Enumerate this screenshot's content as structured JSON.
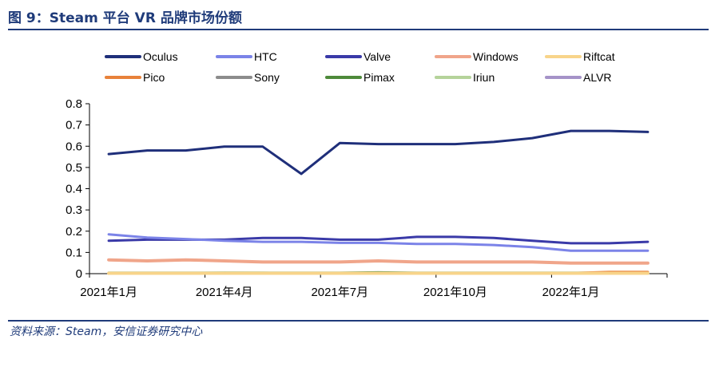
{
  "header": {
    "title": "图 9：Steam 平台 VR 品牌市场份额"
  },
  "footer": {
    "source": "资料来源：Steam，安信证券研究中心"
  },
  "chart_data": {
    "type": "line",
    "x": [
      "2021-01",
      "2021-02",
      "2021-03",
      "2021-04",
      "2021-05",
      "2021-06",
      "2021-07",
      "2021-08",
      "2021-09",
      "2021-10",
      "2021-11",
      "2021-12",
      "2022-01",
      "2022-02",
      "2022-03"
    ],
    "x_tick_labels": [
      "2021年1月",
      "2021年4月",
      "2021年7月",
      "2021年10月",
      "2022年1月"
    ],
    "x_tick_index": [
      0,
      3,
      6,
      9,
      12
    ],
    "ylim": [
      0,
      0.8
    ],
    "yticks": [
      0,
      0.1,
      0.2,
      0.3,
      0.4,
      0.5,
      0.6,
      0.7,
      0.8
    ],
    "ytick_labels": [
      "0",
      "0.1",
      "0.2",
      "0.3",
      "0.4",
      "0.5",
      "0.6",
      "0.7",
      "0.8"
    ],
    "legend_position": "top",
    "series": [
      {
        "name": "Oculus",
        "color": "#1f2f7a",
        "width": 3,
        "values": [
          0.563,
          0.58,
          0.58,
          0.598,
          0.598,
          0.47,
          0.615,
          0.61,
          0.61,
          0.61,
          0.62,
          0.638,
          0.672,
          0.672,
          0.667
        ]
      },
      {
        "name": "HTC",
        "color": "#7b83e8",
        "width": 3,
        "values": [
          0.185,
          0.17,
          0.163,
          0.155,
          0.15,
          0.15,
          0.145,
          0.145,
          0.14,
          0.14,
          0.135,
          0.125,
          0.108,
          0.108,
          0.108
        ]
      },
      {
        "name": "Valve",
        "color": "#3a3aa8",
        "width": 3,
        "values": [
          0.155,
          0.16,
          0.16,
          0.16,
          0.168,
          0.168,
          0.16,
          0.16,
          0.173,
          0.173,
          0.168,
          0.155,
          0.143,
          0.143,
          0.15
        ]
      },
      {
        "name": "Windows",
        "color": "#f0a58a",
        "width": 4,
        "values": [
          0.065,
          0.06,
          0.065,
          0.06,
          0.055,
          0.055,
          0.055,
          0.06,
          0.055,
          0.055,
          0.055,
          0.055,
          0.05,
          0.05,
          0.05
        ]
      },
      {
        "name": "Riftcat",
        "color": "#f8d48a",
        "width": 4,
        "values": [
          0.002,
          0.002,
          0.002,
          0.002,
          0.002,
          0.002,
          0.002,
          0.002,
          0.002,
          0.002,
          0.002,
          0.002,
          0.002,
          0.002,
          0.002
        ]
      },
      {
        "name": "Pico",
        "color": "#e8823a",
        "width": 3,
        "values": [
          0,
          0,
          0,
          0,
          0,
          0,
          0,
          0,
          0,
          0,
          0,
          0,
          0.003,
          0.008,
          0.008
        ]
      },
      {
        "name": "Sony",
        "color": "#8c8c8c",
        "width": 3,
        "values": [
          0.003,
          0.003,
          0.003,
          0.003,
          0.003,
          0.003,
          0.003,
          0.003,
          0.003,
          0.003,
          0.003,
          0.003,
          0.003,
          0.003,
          0.003
        ]
      },
      {
        "name": "Pimax",
        "color": "#4e8a3a",
        "width": 3,
        "values": [
          0.004,
          0.004,
          0.004,
          0.004,
          0.004,
          0.004,
          0.004,
          0.006,
          0.004,
          0.004,
          0.004,
          0.004,
          0.004,
          0.004,
          0.004
        ]
      },
      {
        "name": "Iriun",
        "color": "#b5d39a",
        "width": 3,
        "values": [
          0,
          0,
          0.003,
          0.005,
          0.004,
          0.002,
          0,
          0,
          0,
          0,
          0,
          0,
          0,
          0,
          0
        ]
      },
      {
        "name": "ALVR",
        "color": "#a593c8",
        "width": 3,
        "values": [
          0.001,
          0.001,
          0.001,
          0.001,
          0.001,
          0.001,
          0.001,
          0.001,
          0.001,
          0.001,
          0.001,
          0.001,
          0.001,
          0.001,
          0.001
        ]
      }
    ]
  }
}
